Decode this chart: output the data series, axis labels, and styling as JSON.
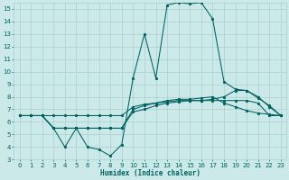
{
  "xlabel": "Humidex (Indice chaleur)",
  "xlim": [
    -0.5,
    23.5
  ],
  "ylim": [
    3,
    15.5
  ],
  "xticks": [
    0,
    1,
    2,
    3,
    4,
    5,
    6,
    7,
    8,
    9,
    10,
    11,
    12,
    13,
    14,
    15,
    16,
    17,
    18,
    19,
    20,
    21,
    22,
    23
  ],
  "yticks": [
    3,
    4,
    5,
    6,
    7,
    8,
    9,
    10,
    11,
    12,
    13,
    14,
    15
  ],
  "bg_color": "#cce9e9",
  "grid_color": "#aacece",
  "line_color": "#006060",
  "line1_x": [
    0,
    1,
    2,
    3,
    4,
    5,
    6,
    7,
    8,
    9,
    10,
    11,
    12,
    13,
    14,
    15,
    16,
    17,
    18,
    19,
    20,
    21,
    22,
    23
  ],
  "line1_y": [
    6.5,
    6.5,
    6.5,
    6.5,
    6.5,
    6.5,
    6.5,
    6.5,
    6.5,
    6.5,
    7.2,
    7.4,
    7.5,
    7.6,
    7.7,
    7.7,
    7.7,
    7.8,
    8.0,
    8.5,
    8.5,
    8.0,
    7.2,
    6.5
  ],
  "line2_x": [
    0,
    1,
    2,
    3,
    4,
    5,
    6,
    7,
    8,
    9,
    10,
    11,
    12,
    13,
    14,
    15,
    16,
    17,
    18,
    19,
    20,
    21,
    22,
    23
  ],
  "line2_y": [
    6.5,
    6.5,
    6.5,
    5.5,
    5.5,
    5.5,
    5.5,
    5.5,
    5.5,
    5.5,
    6.8,
    7.0,
    7.3,
    7.5,
    7.6,
    7.7,
    7.7,
    7.7,
    7.7,
    7.7,
    7.7,
    7.5,
    6.5,
    6.5
  ],
  "line3_x": [
    0,
    1,
    2,
    3,
    4,
    5,
    6,
    7,
    8,
    9,
    10,
    11,
    12,
    13,
    14,
    15,
    16,
    17,
    18,
    19,
    20,
    21,
    22,
    23
  ],
  "line3_y": [
    6.5,
    6.5,
    6.5,
    5.5,
    5.5,
    5.5,
    5.5,
    5.5,
    5.5,
    5.5,
    7.0,
    7.3,
    7.5,
    7.7,
    7.8,
    7.8,
    7.9,
    8.0,
    7.5,
    7.2,
    6.9,
    6.7,
    6.6,
    6.5
  ],
  "line4_x": [
    0,
    1,
    2,
    3,
    4,
    5,
    6,
    7,
    8,
    9,
    10,
    11,
    12,
    13,
    14,
    15,
    16,
    17,
    18,
    19,
    20,
    21,
    22,
    23
  ],
  "line4_y": [
    6.5,
    6.5,
    6.5,
    5.5,
    4.0,
    5.5,
    4.0,
    3.8,
    3.3,
    4.2,
    9.5,
    13.0,
    9.5,
    15.3,
    15.5,
    15.4,
    15.5,
    14.2,
    9.2,
    8.6,
    8.5,
    7.9,
    7.3,
    6.5
  ]
}
